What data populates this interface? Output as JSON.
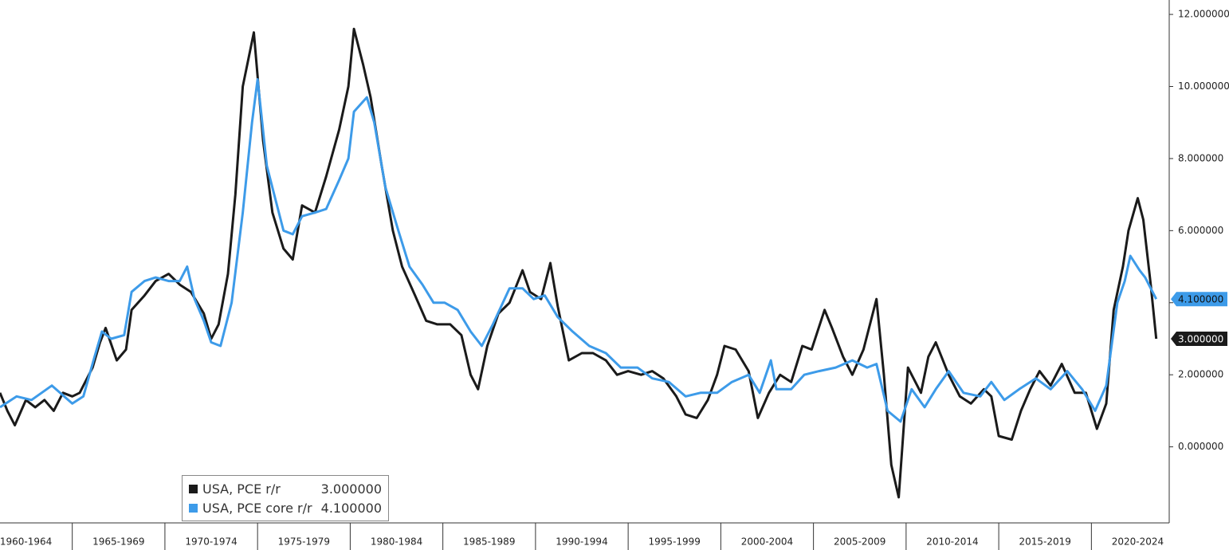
{
  "chart_data": {
    "type": "line",
    "xlim": [
      1961.1,
      2024.2
    ],
    "ylim": [
      -2,
      12.4
    ],
    "xticks": [
      {
        "value": 1960,
        "label": "1960-1964"
      },
      {
        "value": 1965,
        "label": "1965-1969"
      },
      {
        "value": 1970,
        "label": "1970-1974"
      },
      {
        "value": 1975,
        "label": "1975-1979"
      },
      {
        "value": 1980,
        "label": "1980-1984"
      },
      {
        "value": 1985,
        "label": "1985-1989"
      },
      {
        "value": 1990,
        "label": "1990-1994"
      },
      {
        "value": 1995,
        "label": "1995-1999"
      },
      {
        "value": 2000,
        "label": "2000-2004"
      },
      {
        "value": 2005,
        "label": "2005-2009"
      },
      {
        "value": 2010,
        "label": "2010-2014"
      },
      {
        "value": 2015,
        "label": "2015-2019"
      },
      {
        "value": 2020,
        "label": "2020-2024"
      }
    ],
    "yticks": [
      {
        "value": 0,
        "label": "0.000000"
      },
      {
        "value": 2,
        "label": "2.000000"
      },
      {
        "value": 4,
        "label": "4.000000"
      },
      {
        "value": 6,
        "label": "6.000000"
      },
      {
        "value": 8,
        "label": "8.000000"
      },
      {
        "value": 10,
        "label": "10.000000"
      },
      {
        "value": 12,
        "label": "12.000000"
      }
    ],
    "series": [
      {
        "name": "USA, PCE r/r",
        "color": "#1a1a1a",
        "last_label": "3.000000",
        "x": [
          1961.1,
          1961.5,
          1961.9,
          1962.5,
          1963.0,
          1963.5,
          1964.0,
          1964.5,
          1965.0,
          1965.4,
          1966.1,
          1966.5,
          1966.8,
          1967.4,
          1967.9,
          1968.2,
          1968.9,
          1969.5,
          1970.2,
          1970.8,
          1971.4,
          1972.1,
          1972.5,
          1972.9,
          1973.4,
          1973.8,
          1974.2,
          1974.8,
          1975.3,
          1975.8,
          1976.4,
          1976.9,
          1977.4,
          1978.1,
          1978.7,
          1979.4,
          1979.9,
          1980.2,
          1980.7,
          1981.1,
          1981.7,
          1982.3,
          1982.8,
          1983.5,
          1984.1,
          1984.7,
          1985.4,
          1986.0,
          1986.5,
          1986.9,
          1987.4,
          1988.0,
          1988.6,
          1989.3,
          1989.7,
          1990.3,
          1990.8,
          1991.2,
          1991.8,
          1992.5,
          1993.1,
          1993.8,
          1994.4,
          1995.0,
          1995.7,
          1996.3,
          1996.9,
          1997.6,
          1998.1,
          1998.7,
          1999.3,
          1999.8,
          2000.2,
          2000.8,
          2001.5,
          2002.0,
          2002.6,
          2003.2,
          2003.8,
          2004.4,
          2004.9,
          2005.6,
          2006.0,
          2006.6,
          2007.1,
          2007.7,
          2008.4,
          2008.8,
          2009.2,
          2009.6,
          2010.1,
          2010.8,
          2011.2,
          2011.6,
          2012.3,
          2012.9,
          2013.5,
          2014.2,
          2014.6,
          2015.0,
          2015.7,
          2016.2,
          2016.7,
          2017.2,
          2017.8,
          2018.4,
          2019.1,
          2019.7,
          2020.3,
          2020.8,
          2021.2,
          2021.7,
          2022.0,
          2022.5,
          2022.8,
          2023.2,
          2023.5
        ],
        "values": [
          1.5,
          1.0,
          0.6,
          1.3,
          1.1,
          1.3,
          1.0,
          1.5,
          1.4,
          1.5,
          2.2,
          2.9,
          3.3,
          2.4,
          2.7,
          3.8,
          4.2,
          4.6,
          4.8,
          4.5,
          4.3,
          3.7,
          3.0,
          3.4,
          4.8,
          7.0,
          10.0,
          11.5,
          8.5,
          6.5,
          5.5,
          5.2,
          6.7,
          6.5,
          7.5,
          8.8,
          10.0,
          11.6,
          10.6,
          9.7,
          7.8,
          6.0,
          5.0,
          4.2,
          3.5,
          3.4,
          3.4,
          3.1,
          2.0,
          1.6,
          2.8,
          3.7,
          4.0,
          4.9,
          4.3,
          4.1,
          5.1,
          3.9,
          2.4,
          2.6,
          2.6,
          2.4,
          2.0,
          2.1,
          2.0,
          2.1,
          1.9,
          1.4,
          0.9,
          0.8,
          1.3,
          2.0,
          2.8,
          2.7,
          2.1,
          0.8,
          1.5,
          2.0,
          1.8,
          2.8,
          2.7,
          3.8,
          3.3,
          2.5,
          2.0,
          2.7,
          4.1,
          2.0,
          -0.5,
          -1.4,
          2.2,
          1.5,
          2.5,
          2.9,
          2.0,
          1.4,
          1.2,
          1.6,
          1.4,
          0.3,
          0.2,
          1.0,
          1.6,
          2.1,
          1.7,
          2.3,
          1.5,
          1.5,
          0.5,
          1.2,
          3.8,
          5.0,
          6.0,
          6.9,
          6.3,
          4.5,
          3.0
        ]
      },
      {
        "name": "USA, PCE core r/r",
        "color": "#3d9be9",
        "last_label": "4.100000",
        "x": [
          1961.1,
          1962.0,
          1962.8,
          1963.9,
          1965.0,
          1965.6,
          1966.2,
          1966.6,
          1967.1,
          1967.8,
          1968.2,
          1968.9,
          1969.5,
          1970.2,
          1970.8,
          1971.2,
          1971.6,
          1972.1,
          1972.5,
          1973.0,
          1973.6,
          1974.2,
          1974.7,
          1975.0,
          1975.5,
          1976.0,
          1976.4,
          1976.9,
          1977.4,
          1978.1,
          1978.7,
          1979.4,
          1979.9,
          1980.2,
          1980.9,
          1981.3,
          1981.9,
          1982.6,
          1983.2,
          1983.9,
          1984.5,
          1985.1,
          1985.8,
          1986.5,
          1987.1,
          1987.7,
          1988.6,
          1989.3,
          1989.9,
          1990.5,
          1991.2,
          1992.0,
          1992.9,
          1993.8,
          1994.6,
          1995.5,
          1996.3,
          1997.2,
          1998.1,
          1998.9,
          1999.8,
          2000.6,
          2001.5,
          2002.1,
          2002.7,
          2003.0,
          2003.8,
          2004.5,
          2005.3,
          2006.2,
          2007.1,
          2007.9,
          2008.4,
          2009.0,
          2009.7,
          2010.3,
          2011.0,
          2011.6,
          2012.3,
          2013.1,
          2014.0,
          2014.6,
          2015.3,
          2016.1,
          2017.0,
          2017.8,
          2018.7,
          2019.5,
          2020.2,
          2020.8,
          2021.4,
          2021.8,
          2022.1,
          2022.6,
          2022.9,
          2023.5
        ],
        "values": [
          1.1,
          1.4,
          1.3,
          1.7,
          1.2,
          1.4,
          2.5,
          3.2,
          3.0,
          3.1,
          4.3,
          4.6,
          4.7,
          4.6,
          4.6,
          5.0,
          4.1,
          3.5,
          2.9,
          2.8,
          4.0,
          6.5,
          9.0,
          10.2,
          7.8,
          6.8,
          6.0,
          5.9,
          6.4,
          6.5,
          6.6,
          7.4,
          8.0,
          9.3,
          9.7,
          9.0,
          7.2,
          6.0,
          5.0,
          4.5,
          4.0,
          4.0,
          3.8,
          3.2,
          2.8,
          3.4,
          4.4,
          4.4,
          4.1,
          4.2,
          3.6,
          3.2,
          2.8,
          2.6,
          2.2,
          2.2,
          1.9,
          1.8,
          1.4,
          1.5,
          1.5,
          1.8,
          2.0,
          1.5,
          2.4,
          1.6,
          1.6,
          2.0,
          2.1,
          2.2,
          2.4,
          2.2,
          2.3,
          1.0,
          0.7,
          1.6,
          1.1,
          1.6,
          2.1,
          1.5,
          1.4,
          1.8,
          1.3,
          1.6,
          1.9,
          1.6,
          2.1,
          1.6,
          1.0,
          1.7,
          4.0,
          4.6,
          5.3,
          4.9,
          4.7,
          4.1
        ]
      }
    ]
  }
}
